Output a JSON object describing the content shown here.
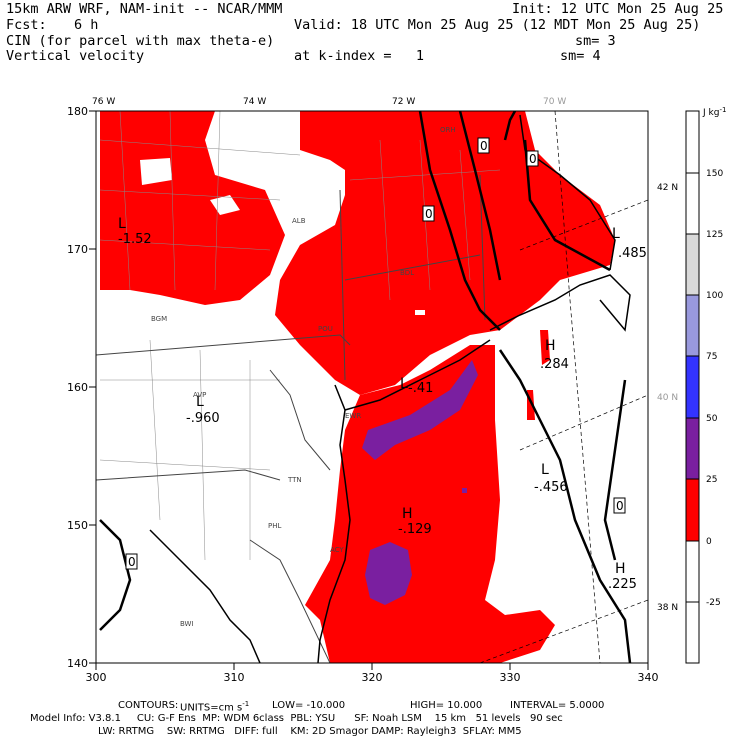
{
  "header": {
    "model": "15km ARW WRF, NAM-init -- NCAR/MMM",
    "init": "Init: 12 UTC Mon 25 Aug 25",
    "fcst_label": "Fcst:",
    "fcst_value": "6 h",
    "valid": "Valid: 18 UTC Mon 25 Aug 25 (12 MDT Mon 25 Aug 25)",
    "field1": "CIN (for parcel with max theta-e)",
    "sm1": "sm= 3",
    "field2": "Vertical velocity",
    "kindex": "at k-index =   1",
    "sm2": "sm= 4"
  },
  "axes": {
    "x_ticks": [
      "300",
      "310",
      "320",
      "330",
      "340"
    ],
    "y_ticks": [
      "140",
      "150",
      "160",
      "170",
      "180"
    ],
    "lon_labels": [
      "76 W",
      "74 W",
      "72 W",
      "70 W"
    ],
    "lat_labels": [
      "42 N",
      "40 N",
      "38 N"
    ]
  },
  "colorbar": {
    "unit": "J kg",
    "unit_sup": "-1",
    "labels": [
      "150",
      "125",
      "100",
      "75",
      "50",
      "25",
      "0",
      "-25"
    ],
    "colors": [
      "#ffffff",
      "#ffffff",
      "#d9d9d9",
      "#9999dd",
      "#3333ff",
      "#7a1fa0",
      "#ff0000",
      "#ffffff",
      "#ffffff"
    ]
  },
  "map_labels": {
    "L1": "L",
    "L1_val": "-1.52",
    "L2": "L",
    "L2_val": ".485",
    "H1": "H",
    "H1_val": ".284",
    "L3": "L",
    "L3_val": "-.960",
    "L4": "L",
    "L4_val": "-.41",
    "L5": "L",
    "L5_val": "-.456",
    "H2": "H",
    "H2_val": "-.129",
    "H3": "H",
    "H3_val": ".225",
    "zero": "0",
    "cities": [
      "ALB",
      "BGM",
      "AVP",
      "TTN",
      "PHL",
      "BWI",
      "ORH",
      "BDL",
      "POU",
      "EWR",
      "ACY"
    ]
  },
  "footer": {
    "contours_label": "CONTOURS:",
    "units": "UNITS=cm s",
    "units_sup": "-1",
    "low": "LOW= -10.000",
    "high": "HIGH= 10.000",
    "interval": "INTERVAL= 5.0000",
    "model_info": "Model Info: V3.8.1     CU: G-F Ens  MP: WDM 6class  PBL: YSU      SF: Noah LSM    15 km   51 levels   90 sec",
    "model_info2": "LW: RRTMG    SW: RRTMG   DIFF: full    KM: 2D Smagor DAMP: Rayleigh3  SFLAY: MM5"
  }
}
